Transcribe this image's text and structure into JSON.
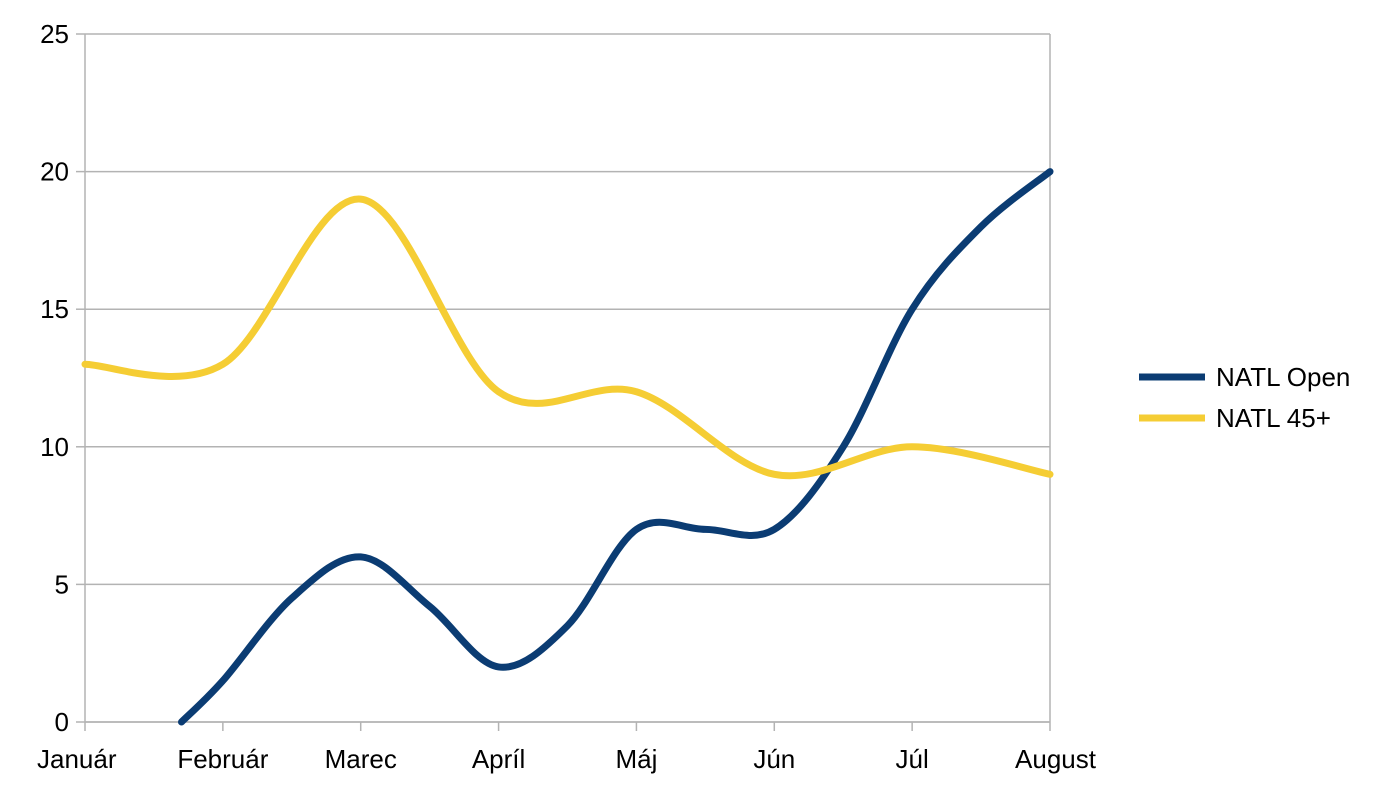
{
  "chart_data": {
    "type": "line",
    "smooth": true,
    "title": "",
    "xlabel": "",
    "ylabel": "",
    "categories": [
      "Január",
      "Február",
      "Marec",
      "Apríl",
      "Máj",
      "Jún",
      "Júl",
      "August"
    ],
    "ylim": [
      0,
      25
    ],
    "y_ticks": [
      "0",
      "5",
      "10",
      "15",
      "20",
      "25"
    ],
    "grid": "horizontal",
    "legend_position": "right",
    "series": [
      {
        "name": "NATL Open",
        "color": "#0b3c73",
        "points": [
          [
            1.7,
            0
          ],
          [
            2,
            1.5
          ],
          [
            2.5,
            4.5
          ],
          [
            3,
            6
          ],
          [
            3.5,
            4.2
          ],
          [
            4,
            2
          ],
          [
            4.5,
            3.5
          ],
          [
            5,
            7
          ],
          [
            5.5,
            7
          ],
          [
            6,
            7
          ],
          [
            6.5,
            10
          ],
          [
            7,
            15
          ],
          [
            7.5,
            18
          ],
          [
            8,
            20
          ]
        ]
      },
      {
        "name": "NATL 45+",
        "color": "#f5cd34",
        "values": [
          13,
          13,
          19,
          12,
          12,
          9,
          10,
          9
        ]
      }
    ]
  }
}
